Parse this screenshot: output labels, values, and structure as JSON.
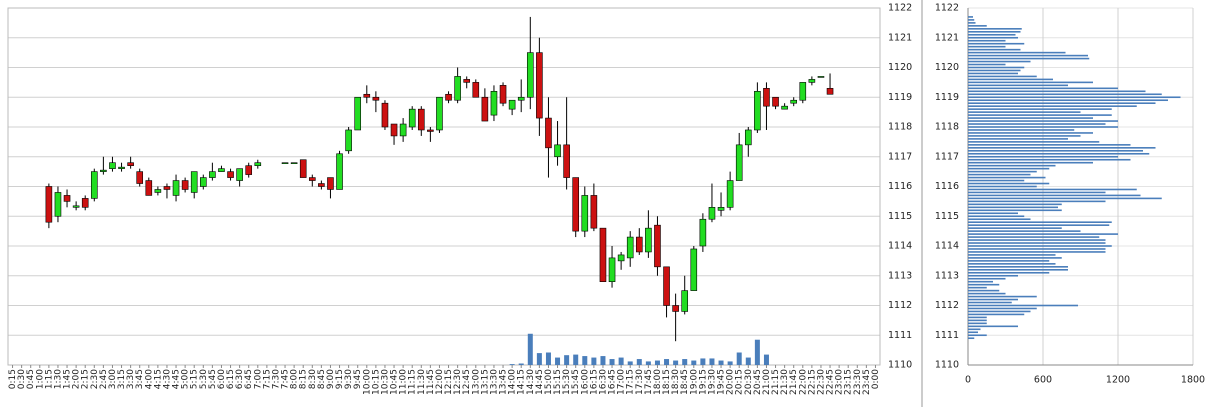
{
  "chart_data": [
    {
      "type": "candlestick",
      "categories": [
        "0:15",
        "0:30",
        "0:45",
        "1:00",
        "1:15",
        "1:30",
        "1:45",
        "2:00",
        "2:15",
        "2:30",
        "2:45",
        "3:00",
        "3:15",
        "3:30",
        "3:45",
        "4:00",
        "4:15",
        "4:30",
        "4:45",
        "5:00",
        "5:15",
        "5:30",
        "5:45",
        "6:00",
        "6:15",
        "6:30",
        "6:45",
        "7:00",
        "7:15",
        "7:30",
        "7:45",
        "8:00",
        "8:15",
        "8:30",
        "8:45",
        "9:00",
        "9:15",
        "9:30",
        "9:45",
        "10:00",
        "10:15",
        "10:30",
        "10:45",
        "11:00",
        "11:15",
        "11:30",
        "11:45",
        "12:00",
        "12:15",
        "12:30",
        "12:45",
        "13:00",
        "13:15",
        "13:30",
        "13:45",
        "14:00",
        "14:15",
        "14:30",
        "14:45",
        "15:00",
        "15:15",
        "15:30",
        "15:45",
        "16:00",
        "16:15",
        "16:30",
        "16:45",
        "17:00",
        "17:15",
        "17:30",
        "17:45",
        "18:00",
        "18:15",
        "18:30",
        "18:45",
        "19:00",
        "19:15",
        "19:30",
        "19:45",
        "20:00",
        "20:15",
        "20:30",
        "20:45",
        "21:00",
        "21:15",
        "21:30",
        "21:45",
        "22:00",
        "22:15",
        "22:30",
        "22:45",
        "23:00",
        "23:15",
        "23:30",
        "23:45",
        "0:00"
      ],
      "open": [
        null,
        null,
        null,
        null,
        1116,
        1115,
        1115.7,
        1115.3,
        1115.6,
        1115.6,
        1116.5,
        1116.6,
        1116.6,
        1116.8,
        1116.5,
        1116.2,
        1115.8,
        1116,
        1115.7,
        1116.2,
        1115.8,
        1116,
        1116.3,
        1116.5,
        1116.5,
        1116.2,
        1116.7,
        1116.7,
        null,
        null,
        1116.8,
        1116.8,
        1116.9,
        1116.3,
        1116.1,
        1116.3,
        1115.9,
        1117.2,
        1117.9,
        1119.1,
        1119,
        1118.8,
        1118.1,
        1117.7,
        1118,
        1118.6,
        1117.9,
        1117.9,
        1119.1,
        1118.9,
        1119.6,
        1119.5,
        1119,
        1118.4,
        1119.4,
        1118.6,
        1118.9,
        1119,
        1120.5,
        1118.3,
        1117,
        1117.4,
        1116.3,
        1114.5,
        1115.7,
        1114.6,
        1112.8,
        1113.5,
        1113.6,
        1114.3,
        1113.8,
        1114.7,
        1113.3,
        1112,
        1111.8,
        1112.5,
        1114,
        1114.9,
        1115.2,
        1115.3,
        1116.2,
        1117.4,
        1117.9,
        1119.3,
        1119,
        1118.6,
        1118.8,
        1118.9,
        1119.5,
        1119.7,
        1119.3,
        null,
        null,
        null,
        null,
        null
      ],
      "high": [
        null,
        null,
        null,
        null,
        1116.1,
        1116,
        1115.9,
        1115.5,
        1115.7,
        1116.6,
        1117,
        1117,
        1116.8,
        1117,
        1116.6,
        1116.3,
        1116,
        1116.1,
        1116.4,
        1116.3,
        1116.5,
        1116.4,
        1116.8,
        1116.7,
        1116.6,
        1116.6,
        1116.8,
        1116.9,
        null,
        null,
        1116.8,
        1116.8,
        1116.9,
        1116.4,
        1116.2,
        1116.3,
        1117.2,
        1118,
        1119,
        1119.4,
        1119.2,
        1118.9,
        1118.1,
        1118.3,
        1118.7,
        1118.7,
        1118,
        1119,
        1119.2,
        1120,
        1119.7,
        1119.6,
        1119.3,
        1119.4,
        1119.5,
        1118.9,
        1119.6,
        1121.7,
        1121,
        1119,
        1118.2,
        1119,
        1116.3,
        1116,
        1116.1,
        1114.6,
        1114,
        1113.8,
        1114.5,
        1114.6,
        1115.2,
        1115,
        1113.3,
        1112.4,
        1113,
        1114,
        1115.1,
        1116.1,
        1115.8,
        1116.5,
        1117.8,
        1118,
        1119.5,
        1119.5,
        1119,
        1118.8,
        1119,
        1119.5,
        1119.7,
        1119.7,
        1119.8,
        null,
        null,
        null,
        null,
        null
      ],
      "low": [
        null,
        null,
        null,
        null,
        1114.6,
        1114.8,
        1115.3,
        1115.2,
        1115.2,
        1115.5,
        1116.4,
        1116.5,
        1116.5,
        1116.6,
        1116,
        1115.7,
        1115.7,
        1115.6,
        1115.5,
        1115.8,
        1115.6,
        1115.9,
        1116.2,
        1116.5,
        1116.2,
        1116,
        1116.3,
        1116.6,
        null,
        null,
        1116.8,
        1116.8,
        1116.3,
        1116,
        1115.9,
        1115.6,
        1115.9,
        1117.1,
        1117.9,
        1118.8,
        1118.5,
        1117.9,
        1117.4,
        1117.5,
        1117.9,
        1117.7,
        1117.5,
        1117.8,
        1118.8,
        1118.8,
        1119.3,
        1119,
        1118.2,
        1118.2,
        1118.7,
        1118.4,
        1118.5,
        1118.6,
        1117.7,
        1116.3,
        1116.7,
        1115.9,
        1114.3,
        1114.3,
        1114.5,
        1112.8,
        1112.6,
        1113.2,
        1113.3,
        1113.7,
        1113.6,
        1113,
        1111.6,
        1110.8,
        1111.7,
        1112.5,
        1113.8,
        1114.8,
        1115,
        1115.2,
        1116.2,
        1117,
        1117.8,
        1117.9,
        1118.6,
        1118.6,
        1118.7,
        1118.8,
        1119.4,
        1119.7,
        1119.1,
        null,
        null,
        null,
        null,
        null
      ],
      "close": [
        null,
        null,
        null,
        null,
        1114.8,
        1115.8,
        1115.5,
        1115.35,
        1115.3,
        1116.5,
        1116.55,
        1116.8,
        1116.65,
        1116.7,
        1116.1,
        1115.7,
        1115.9,
        1115.9,
        1116.2,
        1115.9,
        1116.5,
        1116.3,
        1116.5,
        1116.6,
        1116.3,
        1116.6,
        1116.4,
        1116.8,
        null,
        null,
        1116.8,
        1116.8,
        1116.3,
        1116.2,
        1116,
        1115.9,
        1117.1,
        1117.9,
        1119,
        1119,
        1118.9,
        1118,
        1117.7,
        1118.1,
        1118.6,
        1117.9,
        1117.85,
        1119,
        1118.9,
        1119.7,
        1119.5,
        1119,
        1118.2,
        1119.2,
        1118.8,
        1118.9,
        1119,
        1120.5,
        1118.3,
        1117.3,
        1117.4,
        1116.3,
        1114.5,
        1115.7,
        1114.6,
        1112.8,
        1113.6,
        1113.7,
        1114.3,
        1113.8,
        1114.6,
        1113.3,
        1112,
        1111.8,
        1112.5,
        1113.9,
        1114.9,
        1115.3,
        1115.3,
        1116.2,
        1117.4,
        1117.9,
        1119.2,
        1118.7,
        1118.7,
        1118.7,
        1118.9,
        1119.5,
        1119.6,
        1119.7,
        1119.1,
        null,
        null,
        null,
        null,
        null
      ],
      "volume": [
        null,
        null,
        null,
        null,
        null,
        null,
        null,
        null,
        null,
        null,
        null,
        null,
        null,
        null,
        null,
        null,
        null,
        null,
        null,
        null,
        null,
        null,
        null,
        null,
        null,
        null,
        null,
        null,
        null,
        null,
        null,
        null,
        null,
        null,
        null,
        null,
        null,
        null,
        null,
        null,
        null,
        null,
        null,
        null,
        null,
        null,
        null,
        null,
        null,
        null,
        null,
        null,
        null,
        null,
        null,
        0.03,
        0.05,
        1.05,
        0.4,
        0.42,
        0.25,
        0.33,
        0.35,
        0.3,
        0.25,
        0.3,
        0.2,
        0.25,
        0.12,
        0.2,
        0.12,
        0.15,
        0.2,
        0.15,
        0.2,
        0.15,
        0.22,
        0.22,
        0.15,
        0.12,
        0.42,
        0.25,
        0.85,
        0.35,
        null,
        null,
        null,
        null,
        null,
        null,
        null,
        null,
        null,
        null,
        null,
        null
      ],
      "up_color": "#22dd22",
      "down_color": "#cc1111",
      "volume_color": "#4a7ebb",
      "ylim": [
        1110,
        1122
      ],
      "yticks": [
        1110,
        1111,
        1112,
        1113,
        1114,
        1115,
        1116,
        1117,
        1118,
        1119,
        1120,
        1121,
        1122
      ],
      "grid": true
    },
    {
      "type": "barh",
      "color": "#4a7ebb",
      "y": [
        1121.7,
        1121.6,
        1121.5,
        1121.4,
        1121.3,
        1121.2,
        1121.1,
        1121.0,
        1120.9,
        1120.8,
        1120.7,
        1120.6,
        1120.5,
        1120.4,
        1120.3,
        1120.2,
        1120.1,
        1120.0,
        1119.9,
        1119.8,
        1119.7,
        1119.6,
        1119.5,
        1119.4,
        1119.3,
        1119.2,
        1119.1,
        1119.0,
        1118.9,
        1118.8,
        1118.7,
        1118.6,
        1118.5,
        1118.4,
        1118.3,
        1118.2,
        1118.1,
        1118.0,
        1117.9,
        1117.8,
        1117.7,
        1117.6,
        1117.5,
        1117.4,
        1117.3,
        1117.2,
        1117.1,
        1117.0,
        1116.9,
        1116.8,
        1116.7,
        1116.6,
        1116.5,
        1116.4,
        1116.3,
        1116.2,
        1116.1,
        1116.0,
        1115.9,
        1115.8,
        1115.7,
        1115.6,
        1115.5,
        1115.4,
        1115.3,
        1115.2,
        1115.1,
        1115.0,
        1114.9,
        1114.8,
        1114.7,
        1114.6,
        1114.5,
        1114.4,
        1114.3,
        1114.2,
        1114.1,
        1114.0,
        1113.9,
        1113.8,
        1113.7,
        1113.6,
        1113.5,
        1113.4,
        1113.3,
        1113.2,
        1113.1,
        1113.0,
        1112.9,
        1112.8,
        1112.7,
        1112.6,
        1112.5,
        1112.4,
        1112.3,
        1112.2,
        1112.1,
        1112.0,
        1111.9,
        1111.8,
        1111.7,
        1111.6,
        1111.5,
        1111.4,
        1111.3,
        1111.2,
        1111.1,
        1111.0,
        1110.9
      ],
      "values": [
        40,
        50,
        60,
        150,
        430,
        420,
        380,
        400,
        300,
        450,
        300,
        420,
        780,
        960,
        970,
        500,
        300,
        450,
        420,
        400,
        550,
        680,
        1000,
        800,
        1200,
        1420,
        1550,
        1700,
        1600,
        1500,
        1350,
        1150,
        900,
        1150,
        1000,
        1200,
        1100,
        1200,
        850,
        1000,
        900,
        800,
        1050,
        1300,
        1500,
        1400,
        1450,
        1200,
        1300,
        1000,
        700,
        650,
        550,
        500,
        620,
        450,
        650,
        550,
        1350,
        1100,
        1380,
        1550,
        1100,
        750,
        720,
        750,
        400,
        450,
        500,
        1150,
        1130,
        750,
        900,
        1200,
        1050,
        1100,
        1100,
        1150,
        1100,
        1100,
        700,
        750,
        650,
        700,
        800,
        800,
        650,
        400,
        300,
        200,
        250,
        150,
        250,
        300,
        550,
        400,
        350,
        880,
        550,
        500,
        450,
        150,
        150,
        150,
        400,
        100,
        80,
        150,
        50
      ],
      "xlim": [
        0,
        1800
      ],
      "xticks": [
        0,
        600,
        1200,
        1800
      ],
      "ylim": [
        1110,
        1122
      ],
      "yticks": [
        1110,
        1111,
        1112,
        1113,
        1114,
        1115,
        1116,
        1117,
        1118,
        1119,
        1120,
        1121,
        1122
      ],
      "grid": true
    }
  ]
}
